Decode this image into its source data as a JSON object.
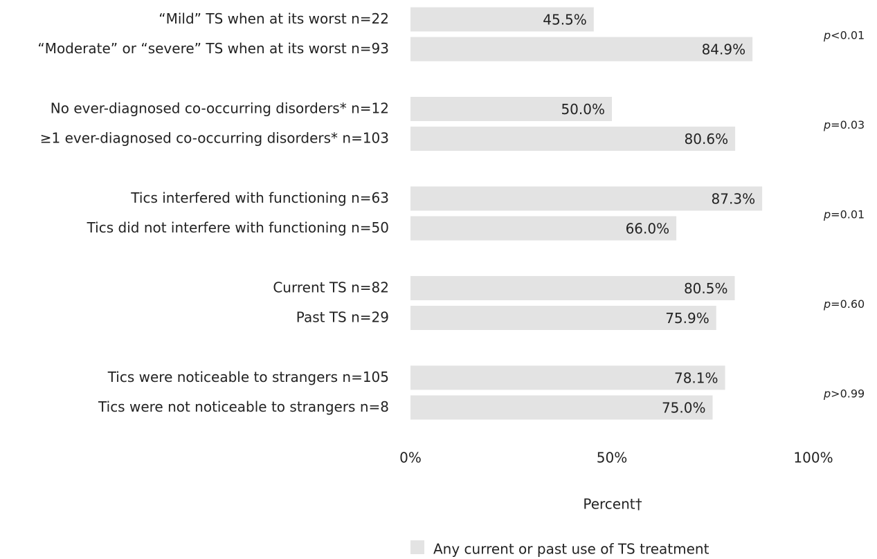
{
  "chart_data": {
    "type": "barh",
    "categories": [
      "“Mild” TS when at its worst n=22",
      "“Moderate” or “severe” TS when at its worst n=93",
      "No ever-diagnosed co-occurring disorders* n=12",
      "≥1 ever-diagnosed co-occurring disorders* n=103",
      "Tics interfered with functioning n=63",
      "Tics did not interfere with functioning n=50",
      "Current TS n=82",
      "Past TS n=29",
      "Tics were noticeable to strangers n=105",
      "Tics were not noticeable to strangers n=8"
    ],
    "series": [
      {
        "name": "Any current or past use of TS treatment",
        "color": "#e3e3e3",
        "values": [
          45.5,
          84.9,
          50.0,
          80.6,
          87.3,
          66.0,
          80.5,
          75.9,
          78.1,
          75.0
        ],
        "value_labels": [
          "45.5%",
          "84.9%",
          "50.0%",
          "80.6%",
          "87.3%",
          "66.0%",
          "80.5%",
          "75.9%",
          "78.1%",
          "75.0%"
        ]
      }
    ],
    "annotations": [
      "p<0.01",
      "p=0.03",
      "p=0.01",
      "p=0.60",
      "p>0.99"
    ],
    "xlabel": "Percent†",
    "xlim": [
      0,
      100
    ],
    "xticks": [
      {
        "value": 0,
        "label": "0%"
      },
      {
        "value": 50,
        "label": "50%"
      },
      {
        "value": 100,
        "label": "100%"
      }
    ]
  }
}
